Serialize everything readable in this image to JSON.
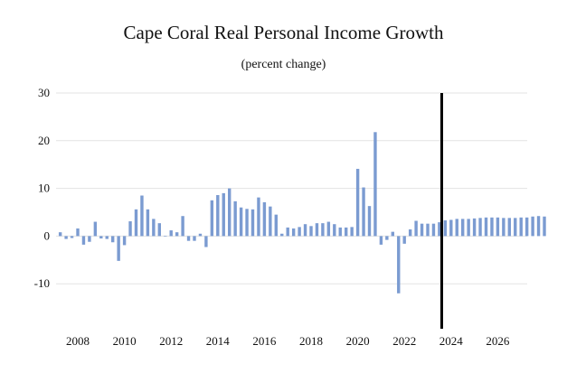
{
  "chart_data": {
    "type": "bar",
    "title": "Cape Coral Real Personal Income Growth",
    "subtitle": "(percent change)",
    "xlabel": "",
    "ylabel": "",
    "ylim": [
      -20,
      30
    ],
    "yticks": [
      30,
      20,
      10,
      0,
      -10
    ],
    "xticks": [
      "2008",
      "2010",
      "2012",
      "2014",
      "2016",
      "2018",
      "2020",
      "2022",
      "2024",
      "2026"
    ],
    "x_start": 2007.25,
    "x_step": 0.25,
    "forecast_line_x": 2023.6,
    "grid": true,
    "bar_color": "#7b9bd1",
    "values": [
      0.8,
      -0.6,
      -0.4,
      1.6,
      -1.8,
      -1.2,
      3.0,
      -0.5,
      -0.6,
      -1.3,
      -5.2,
      -1.9,
      3.1,
      5.6,
      8.5,
      5.6,
      3.6,
      2.7,
      0.0,
      1.2,
      0.8,
      4.2,
      -1.0,
      -1.0,
      0.5,
      -2.3,
      7.5,
      8.6,
      9.0,
      10.0,
      7.3,
      6.0,
      5.7,
      5.6,
      8.1,
      7.1,
      6.2,
      4.5,
      0.5,
      1.8,
      1.6,
      1.9,
      2.5,
      2.1,
      2.7,
      2.7,
      3.0,
      2.5,
      1.8,
      1.8,
      1.9,
      14.1,
      10.2,
      6.3,
      21.8,
      -1.8,
      -0.8,
      0.9,
      -12.0,
      -1.6,
      1.4,
      3.2,
      2.6,
      2.6,
      2.6,
      2.9,
      3.3,
      3.4,
      3.6,
      3.6,
      3.6,
      3.7,
      3.8,
      3.9,
      3.9,
      3.9,
      3.8,
      3.8,
      3.8,
      3.9,
      3.9,
      4.1,
      4.2,
      4.1
    ]
  }
}
